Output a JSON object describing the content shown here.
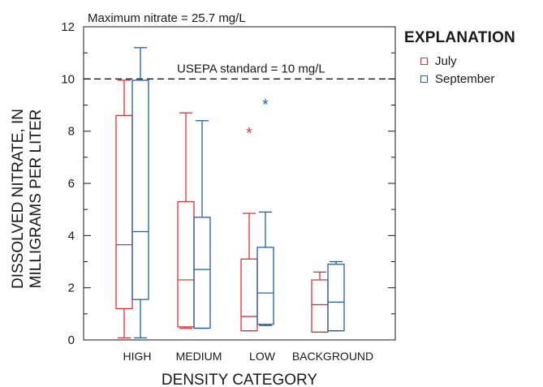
{
  "chart_data": {
    "type": "box",
    "title": "",
    "xlabel": "DENSITY CATEGORY",
    "ylabel_line1": "DISSOLVED NITRATE, IN",
    "ylabel_line2": "MILLIGRAMS PER LITER",
    "ylim": [
      0,
      12
    ],
    "yticks": [
      0,
      2,
      4,
      6,
      8,
      10,
      12
    ],
    "categories": [
      "HIGH",
      "MEDIUM",
      "LOW",
      "BACKGROUND"
    ],
    "reference_line": {
      "value": 10,
      "label": "USEPA standard = 10 mg/L"
    },
    "top_note": "Maximum nitrate = 25.7 mg/L",
    "series": [
      {
        "name": "July",
        "color": "#e0303a",
        "boxes": [
          {
            "min": 0.08,
            "q1": 1.2,
            "median": 3.65,
            "q3": 8.6,
            "max": 9.95
          },
          {
            "min": 0.45,
            "q1": 0.5,
            "median": 2.3,
            "q3": 5.3,
            "max": 8.7
          },
          {
            "min": 0.35,
            "q1": 0.35,
            "median": 0.9,
            "q3": 3.1,
            "max": 4.85
          },
          {
            "min": 0.3,
            "q1": 0.3,
            "median": 1.35,
            "q3": 2.3,
            "max": 2.6
          }
        ],
        "outliers": [
          [
            2,
            8.0
          ]
        ]
      },
      {
        "name": "September",
        "color": "#1f5fa8",
        "boxes": [
          {
            "min": 0.08,
            "q1": 1.55,
            "median": 4.15,
            "q3": 9.95,
            "max": 11.2
          },
          {
            "min": 0.45,
            "q1": 0.45,
            "median": 2.7,
            "q3": 4.7,
            "max": 8.4
          },
          {
            "min": 0.55,
            "q1": 0.6,
            "median": 1.8,
            "q3": 3.55,
            "max": 4.9
          },
          {
            "min": 0.35,
            "q1": 0.35,
            "median": 1.45,
            "q3": 2.9,
            "max": 3.0
          }
        ],
        "outliers": [
          [
            2,
            9.1
          ]
        ]
      }
    ],
    "legend": {
      "title": "EXPLANATION",
      "position": "top-right"
    }
  }
}
